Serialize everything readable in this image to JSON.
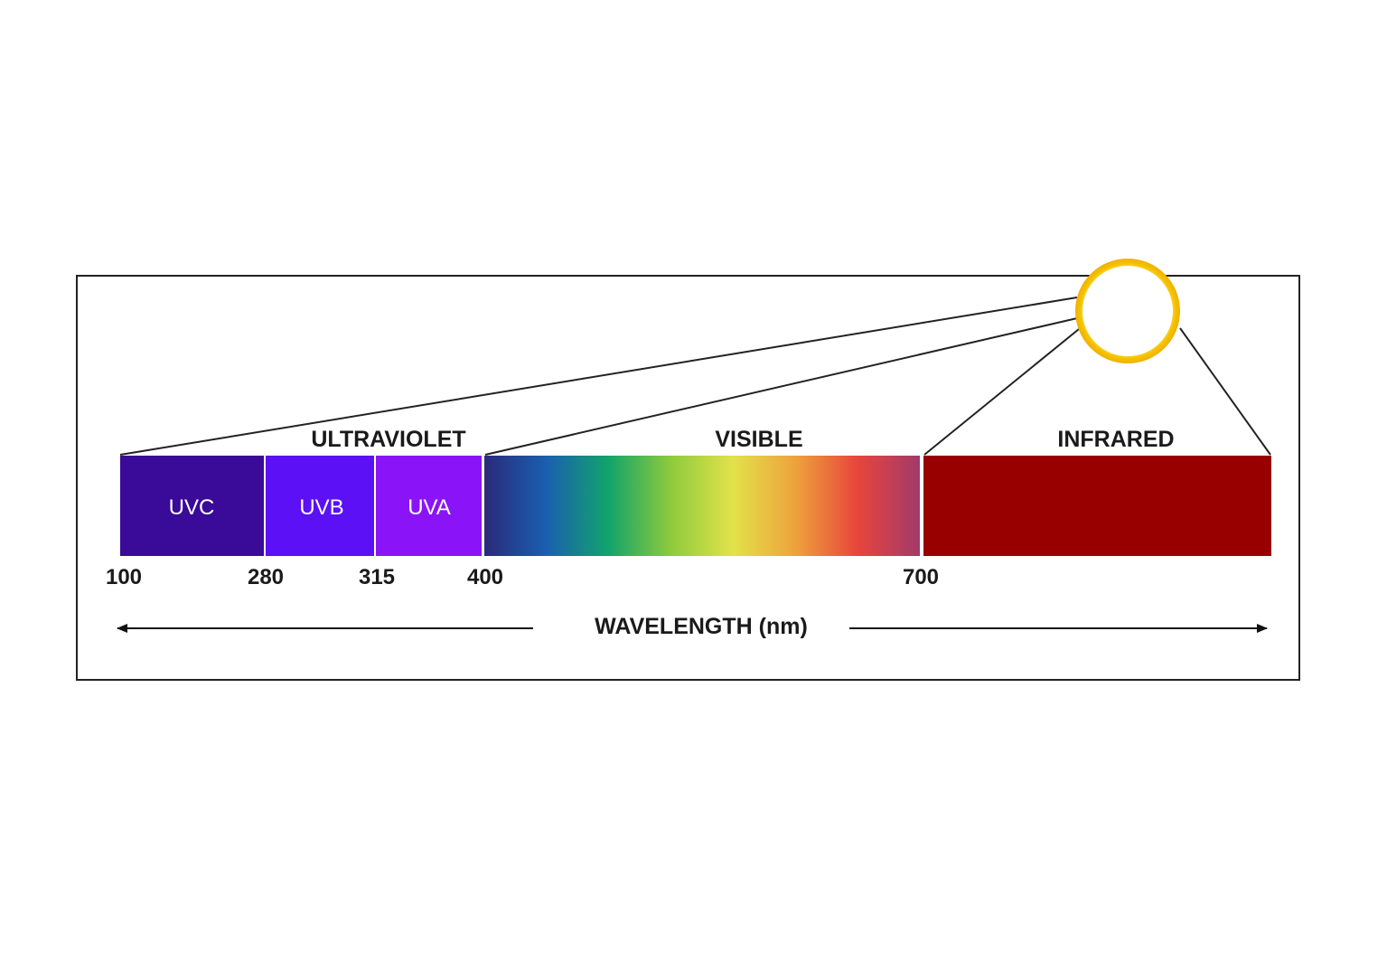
{
  "regions": {
    "ultraviolet": "ULTRAVIOLET",
    "visible": "VISIBLE",
    "infrared": "INFRARED"
  },
  "bands": [
    {
      "label": "UVC",
      "color": "#3a0a99"
    },
    {
      "label": "UVB",
      "color": "#5b10f5"
    },
    {
      "label": "UVA",
      "color": "#8a14f7"
    }
  ],
  "infrared_color": "#980000",
  "visible_gradient": [
    "#2a2a7a",
    "#1a5fb0",
    "#12a46a",
    "#8ecb3c",
    "#e2e24a",
    "#eea23c",
    "#e8453c",
    "#a23a6a"
  ],
  "wavelength_ticks": [
    "100",
    "280",
    "315",
    "400",
    "700"
  ],
  "axis_label": "WAVELENGTH (nm)",
  "sun_colors": {
    "fill": "#ffffff",
    "ring": "#f5c400"
  }
}
